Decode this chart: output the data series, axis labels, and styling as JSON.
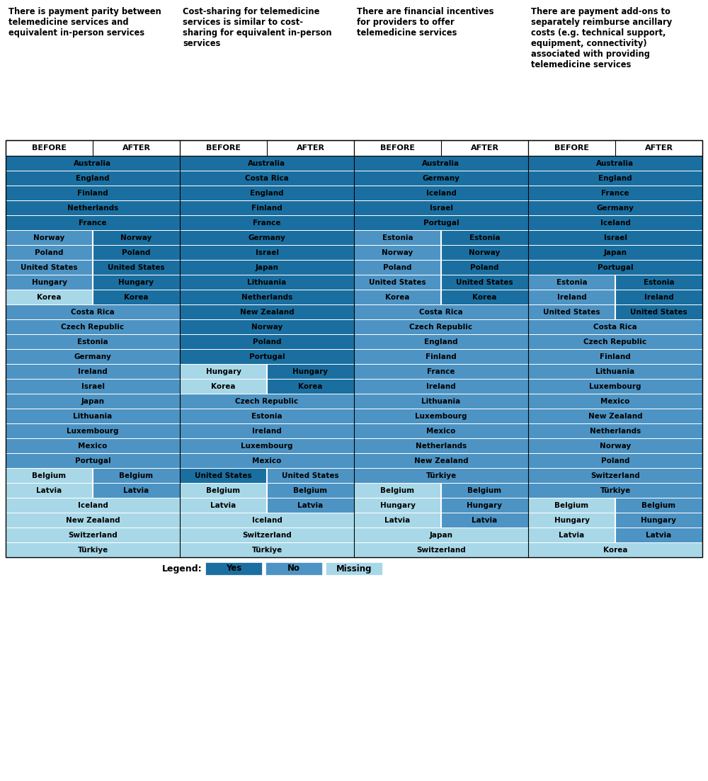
{
  "colors": {
    "yes": "#1a6fa0",
    "no": "#4d94c4",
    "missing": "#a8d8e8"
  },
  "col_headers": [
    "There is payment parity between\ntelemedicine services and\nequivalent in-person services",
    "Cost-sharing for telemedicine\nservices is similar to cost-\nsharing for equivalent in-person\nservices",
    "There are financial incentives\nfor providers to offer\ntelemedicine services",
    "There are payment add-ons to\nseparately reimburse ancillary\ncosts (e.g. technical support,\nequipment, connectivity)\nassociated with providing\ntelemedicine services"
  ],
  "col1_rows": [
    [
      "Australia",
      "yes",
      "yes"
    ],
    [
      "England",
      "yes",
      "yes"
    ],
    [
      "Finland",
      "yes",
      "yes"
    ],
    [
      "Netherlands",
      "yes",
      "yes"
    ],
    [
      "France",
      "yes",
      "yes"
    ],
    [
      "Norway",
      "no",
      "yes"
    ],
    [
      "Poland",
      "no",
      "yes"
    ],
    [
      "United States",
      "no",
      "yes"
    ],
    [
      "Hungary",
      "no",
      "yes"
    ],
    [
      "Korea",
      "missing",
      "yes"
    ],
    [
      "Costa Rica",
      "no",
      "no"
    ],
    [
      "Czech Republic",
      "no",
      "no"
    ],
    [
      "Estonia",
      "no",
      "no"
    ],
    [
      "Germany",
      "no",
      "no"
    ],
    [
      "Ireland",
      "no",
      "no"
    ],
    [
      "Israel",
      "no",
      "no"
    ],
    [
      "Japan",
      "no",
      "no"
    ],
    [
      "Lithuania",
      "no",
      "no"
    ],
    [
      "Luxembourg",
      "no",
      "no"
    ],
    [
      "Mexico",
      "no",
      "no"
    ],
    [
      "Portugal",
      "no",
      "no"
    ],
    [
      "Belgium",
      "missing",
      "no"
    ],
    [
      "Latvia",
      "missing",
      "no"
    ],
    [
      "Iceland",
      "missing",
      "missing"
    ],
    [
      "New Zealand",
      "missing",
      "missing"
    ],
    [
      "Switzerland",
      "missing",
      "missing"
    ],
    [
      "Türkiye",
      "missing",
      "missing"
    ]
  ],
  "col2_rows": [
    [
      "Australia",
      "yes",
      "yes"
    ],
    [
      "Costa Rica",
      "yes",
      "yes"
    ],
    [
      "England",
      "yes",
      "yes"
    ],
    [
      "Finland",
      "yes",
      "yes"
    ],
    [
      "France",
      "yes",
      "yes"
    ],
    [
      "Germany",
      "yes",
      "yes"
    ],
    [
      "Israel",
      "yes",
      "yes"
    ],
    [
      "Japan",
      "yes",
      "yes"
    ],
    [
      "Lithuania",
      "yes",
      "yes"
    ],
    [
      "Netherlands",
      "yes",
      "yes"
    ],
    [
      "New Zealand",
      "yes",
      "yes"
    ],
    [
      "Norway",
      "yes",
      "yes"
    ],
    [
      "Poland",
      "yes",
      "yes"
    ],
    [
      "Portugal",
      "yes",
      "yes"
    ],
    [
      "Hungary",
      "missing",
      "yes"
    ],
    [
      "Korea",
      "missing",
      "yes"
    ],
    [
      "Czech Republic",
      "no",
      "no"
    ],
    [
      "Estonia",
      "no",
      "no"
    ],
    [
      "Ireland",
      "no",
      "no"
    ],
    [
      "Luxembourg",
      "no",
      "no"
    ],
    [
      "Mexico",
      "no",
      "no"
    ],
    [
      "United States",
      "yes",
      "no"
    ],
    [
      "Belgium",
      "missing",
      "no"
    ],
    [
      "Latvia",
      "missing",
      "no"
    ],
    [
      "Iceland",
      "missing",
      "missing"
    ],
    [
      "Switzerland",
      "missing",
      "missing"
    ],
    [
      "Türkiye",
      "missing",
      "missing"
    ]
  ],
  "col3_rows": [
    [
      "Australia",
      "yes",
      "yes"
    ],
    [
      "Germany",
      "yes",
      "yes"
    ],
    [
      "Iceland",
      "yes",
      "yes"
    ],
    [
      "Israel",
      "yes",
      "yes"
    ],
    [
      "Portugal",
      "yes",
      "yes"
    ],
    [
      "Estonia",
      "no",
      "yes"
    ],
    [
      "Norway",
      "no",
      "yes"
    ],
    [
      "Poland",
      "no",
      "yes"
    ],
    [
      "United States",
      "no",
      "yes"
    ],
    [
      "Korea",
      "no",
      "yes"
    ],
    [
      "Costa Rica",
      "no",
      "no"
    ],
    [
      "Czech Republic",
      "no",
      "no"
    ],
    [
      "England",
      "no",
      "no"
    ],
    [
      "Finland",
      "no",
      "no"
    ],
    [
      "France",
      "no",
      "no"
    ],
    [
      "Ireland",
      "no",
      "no"
    ],
    [
      "Lithuania",
      "no",
      "no"
    ],
    [
      "Luxembourg",
      "no",
      "no"
    ],
    [
      "Mexico",
      "no",
      "no"
    ],
    [
      "Netherlands",
      "no",
      "no"
    ],
    [
      "New Zealand",
      "no",
      "no"
    ],
    [
      "Türkiye",
      "no",
      "no"
    ],
    [
      "Belgium",
      "missing",
      "no"
    ],
    [
      "Hungary",
      "missing",
      "no"
    ],
    [
      "Latvia",
      "missing",
      "no"
    ],
    [
      "Japan",
      "missing",
      "missing"
    ],
    [
      "Switzerland",
      "missing",
      "missing"
    ]
  ],
  "col4_rows": [
    [
      "Australia",
      "yes",
      "yes"
    ],
    [
      "England",
      "yes",
      "yes"
    ],
    [
      "France",
      "yes",
      "yes"
    ],
    [
      "Germany",
      "yes",
      "yes"
    ],
    [
      "Iceland",
      "yes",
      "yes"
    ],
    [
      "Israel",
      "yes",
      "yes"
    ],
    [
      "Japan",
      "yes",
      "yes"
    ],
    [
      "Portugal",
      "yes",
      "yes"
    ],
    [
      "Estonia",
      "no",
      "yes"
    ],
    [
      "Ireland",
      "no",
      "yes"
    ],
    [
      "United States",
      "no",
      "yes"
    ],
    [
      "Costa Rica",
      "no",
      "no"
    ],
    [
      "Czech Republic",
      "no",
      "no"
    ],
    [
      "Finland",
      "no",
      "no"
    ],
    [
      "Lithuania",
      "no",
      "no"
    ],
    [
      "Luxembourg",
      "no",
      "no"
    ],
    [
      "Mexico",
      "no",
      "no"
    ],
    [
      "New Zealand",
      "no",
      "no"
    ],
    [
      "Netherlands",
      "no",
      "no"
    ],
    [
      "Norway",
      "no",
      "no"
    ],
    [
      "Poland",
      "no",
      "no"
    ],
    [
      "Switzerland",
      "no",
      "no"
    ],
    [
      "Türkiye",
      "no",
      "no"
    ],
    [
      "Belgium",
      "missing",
      "no"
    ],
    [
      "Hungary",
      "missing",
      "no"
    ],
    [
      "Latvia",
      "missing",
      "no"
    ],
    [
      "Korea",
      "missing",
      "missing"
    ]
  ]
}
